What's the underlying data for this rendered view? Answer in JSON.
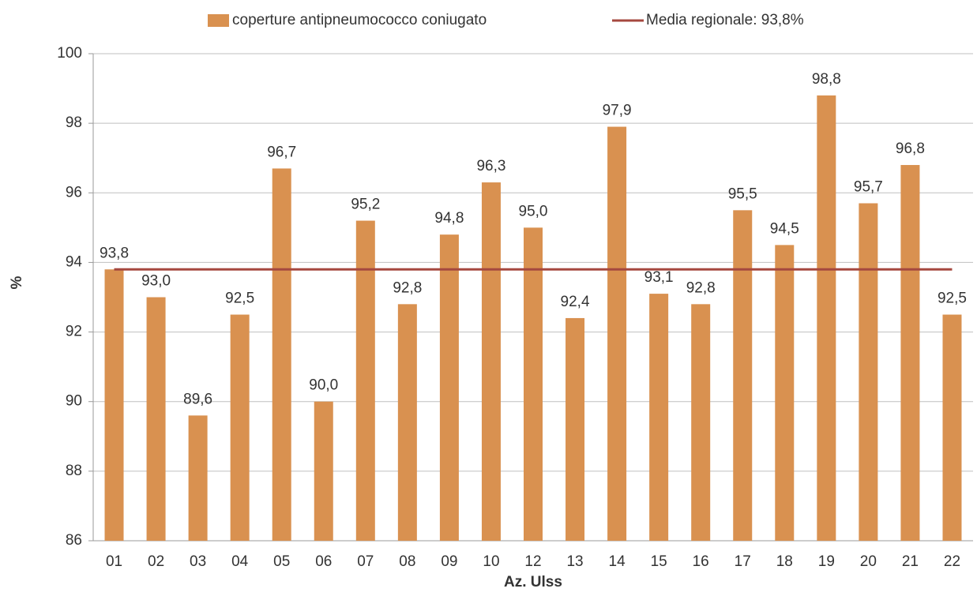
{
  "chart_data": {
    "type": "bar",
    "x_label": "Az. Ulss",
    "y_label": "%",
    "categories": [
      "01",
      "02",
      "03",
      "04",
      "05",
      "06",
      "07",
      "08",
      "09",
      "10",
      "12",
      "13",
      "14",
      "15",
      "16",
      "17",
      "18",
      "19",
      "20",
      "21",
      "22"
    ],
    "series": [
      {
        "name": "coperture antipneumococco coniugato",
        "type": "bar",
        "color": "#d99150",
        "values": [
          93.8,
          93.0,
          89.6,
          92.5,
          96.7,
          90.0,
          95.2,
          92.8,
          94.8,
          96.3,
          95.0,
          92.4,
          97.9,
          93.1,
          92.8,
          95.5,
          94.5,
          98.8,
          95.7,
          96.8,
          92.5
        ],
        "value_labels": [
          "93,8",
          "93,0",
          "89,6",
          "92,5",
          "96,7",
          "90,0",
          "95,2",
          "92,8",
          "94,8",
          "96,3",
          "95,0",
          "92,4",
          "97,9",
          "93,1",
          "92,8",
          "95,5",
          "94,5",
          "98,8",
          "95,7",
          "96,8",
          "92,5"
        ]
      },
      {
        "name": "Media regionale: 93,8%",
        "type": "line",
        "color": "#a5483f",
        "values": [
          93.8,
          93.8,
          93.8,
          93.8,
          93.8,
          93.8,
          93.8,
          93.8,
          93.8,
          93.8,
          93.8,
          93.8,
          93.8,
          93.8,
          93.8,
          93.8,
          93.8,
          93.8,
          93.8,
          93.8,
          93.8
        ]
      }
    ],
    "ylim": [
      86,
      100
    ],
    "yticks": [
      86,
      88,
      90,
      92,
      94,
      96,
      98,
      100
    ],
    "grid": true,
    "legend": "top"
  }
}
